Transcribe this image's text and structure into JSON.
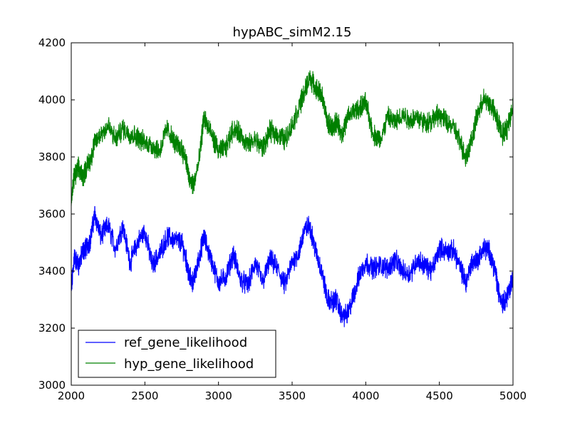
{
  "chart_data": {
    "type": "line",
    "title": "hypABC_simM2.15",
    "xlabel": "",
    "ylabel": "",
    "xlim": [
      2000,
      5000
    ],
    "ylim": [
      3000,
      4200
    ],
    "xticks": [
      2000,
      2500,
      3000,
      3500,
      4000,
      4500,
      5000
    ],
    "yticks": [
      3000,
      3200,
      3400,
      3600,
      3800,
      4000,
      4200
    ],
    "grid": false,
    "legend_position": "lower-left",
    "series": [
      {
        "name": "ref_gene_likelihood",
        "color": "#0000ff",
        "points": [
          [
            2000,
            3330
          ],
          [
            2020,
            3450
          ],
          [
            2050,
            3420
          ],
          [
            2080,
            3470
          ],
          [
            2100,
            3480
          ],
          [
            2130,
            3510
          ],
          [
            2160,
            3600
          ],
          [
            2200,
            3520
          ],
          [
            2250,
            3560
          ],
          [
            2300,
            3480
          ],
          [
            2350,
            3560
          ],
          [
            2400,
            3430
          ],
          [
            2450,
            3500
          ],
          [
            2500,
            3540
          ],
          [
            2550,
            3420
          ],
          [
            2600,
            3460
          ],
          [
            2650,
            3520
          ],
          [
            2700,
            3510
          ],
          [
            2750,
            3500
          ],
          [
            2780,
            3440
          ],
          [
            2800,
            3380
          ],
          [
            2830,
            3360
          ],
          [
            2870,
            3450
          ],
          [
            2900,
            3520
          ],
          [
            2950,
            3440
          ],
          [
            3000,
            3360
          ],
          [
            3050,
            3380
          ],
          [
            3100,
            3460
          ],
          [
            3150,
            3370
          ],
          [
            3200,
            3350
          ],
          [
            3250,
            3430
          ],
          [
            3300,
            3360
          ],
          [
            3350,
            3440
          ],
          [
            3400,
            3410
          ],
          [
            3450,
            3350
          ],
          [
            3500,
            3430
          ],
          [
            3550,
            3470
          ],
          [
            3580,
            3540
          ],
          [
            3620,
            3560
          ],
          [
            3660,
            3470
          ],
          [
            3700,
            3400
          ],
          [
            3740,
            3300
          ],
          [
            3780,
            3290
          ],
          [
            3800,
            3300
          ],
          [
            3840,
            3240
          ],
          [
            3880,
            3250
          ],
          [
            3920,
            3320
          ],
          [
            3960,
            3390
          ],
          [
            4000,
            3430
          ],
          [
            4050,
            3410
          ],
          [
            4100,
            3420
          ],
          [
            4150,
            3410
          ],
          [
            4200,
            3440
          ],
          [
            4250,
            3400
          ],
          [
            4300,
            3390
          ],
          [
            4350,
            3440
          ],
          [
            4400,
            3420
          ],
          [
            4450,
            3400
          ],
          [
            4500,
            3480
          ],
          [
            4550,
            3470
          ],
          [
            4600,
            3470
          ],
          [
            4650,
            3400
          ],
          [
            4680,
            3360
          ],
          [
            4720,
            3430
          ],
          [
            4760,
            3440
          ],
          [
            4800,
            3480
          ],
          [
            4840,
            3470
          ],
          [
            4880,
            3400
          ],
          [
            4900,
            3330
          ],
          [
            4930,
            3290
          ],
          [
            4960,
            3310
          ],
          [
            5000,
            3380
          ]
        ]
      },
      {
        "name": "hyp_gene_likelihood",
        "color": "#008000",
        "points": [
          [
            2000,
            3640
          ],
          [
            2020,
            3730
          ],
          [
            2050,
            3760
          ],
          [
            2080,
            3730
          ],
          [
            2100,
            3760
          ],
          [
            2130,
            3790
          ],
          [
            2160,
            3850
          ],
          [
            2200,
            3880
          ],
          [
            2250,
            3910
          ],
          [
            2300,
            3860
          ],
          [
            2350,
            3900
          ],
          [
            2400,
            3880
          ],
          [
            2450,
            3870
          ],
          [
            2500,
            3850
          ],
          [
            2550,
            3840
          ],
          [
            2600,
            3820
          ],
          [
            2650,
            3900
          ],
          [
            2700,
            3850
          ],
          [
            2750,
            3830
          ],
          [
            2780,
            3790
          ],
          [
            2800,
            3720
          ],
          [
            2830,
            3700
          ],
          [
            2870,
            3790
          ],
          [
            2900,
            3940
          ],
          [
            2950,
            3880
          ],
          [
            3000,
            3820
          ],
          [
            3050,
            3830
          ],
          [
            3100,
            3900
          ],
          [
            3150,
            3880
          ],
          [
            3200,
            3840
          ],
          [
            3250,
            3860
          ],
          [
            3300,
            3830
          ],
          [
            3350,
            3890
          ],
          [
            3400,
            3880
          ],
          [
            3450,
            3860
          ],
          [
            3500,
            3910
          ],
          [
            3550,
            3980
          ],
          [
            3580,
            4020
          ],
          [
            3620,
            4080
          ],
          [
            3660,
            4040
          ],
          [
            3700,
            4020
          ],
          [
            3740,
            3920
          ],
          [
            3780,
            3900
          ],
          [
            3800,
            3930
          ],
          [
            3840,
            3880
          ],
          [
            3880,
            3940
          ],
          [
            3920,
            3960
          ],
          [
            3960,
            3970
          ],
          [
            4000,
            3990
          ],
          [
            4050,
            3880
          ],
          [
            4100,
            3860
          ],
          [
            4150,
            3940
          ],
          [
            4200,
            3920
          ],
          [
            4250,
            3950
          ],
          [
            4300,
            3930
          ],
          [
            4350,
            3940
          ],
          [
            4400,
            3920
          ],
          [
            4450,
            3930
          ],
          [
            4500,
            3950
          ],
          [
            4550,
            3920
          ],
          [
            4600,
            3900
          ],
          [
            4650,
            3840
          ],
          [
            4680,
            3800
          ],
          [
            4720,
            3860
          ],
          [
            4760,
            3950
          ],
          [
            4800,
            4000
          ],
          [
            4840,
            3990
          ],
          [
            4880,
            3950
          ],
          [
            4900,
            3920
          ],
          [
            4930,
            3880
          ],
          [
            4960,
            3900
          ],
          [
            5000,
            3980
          ]
        ]
      }
    ]
  }
}
